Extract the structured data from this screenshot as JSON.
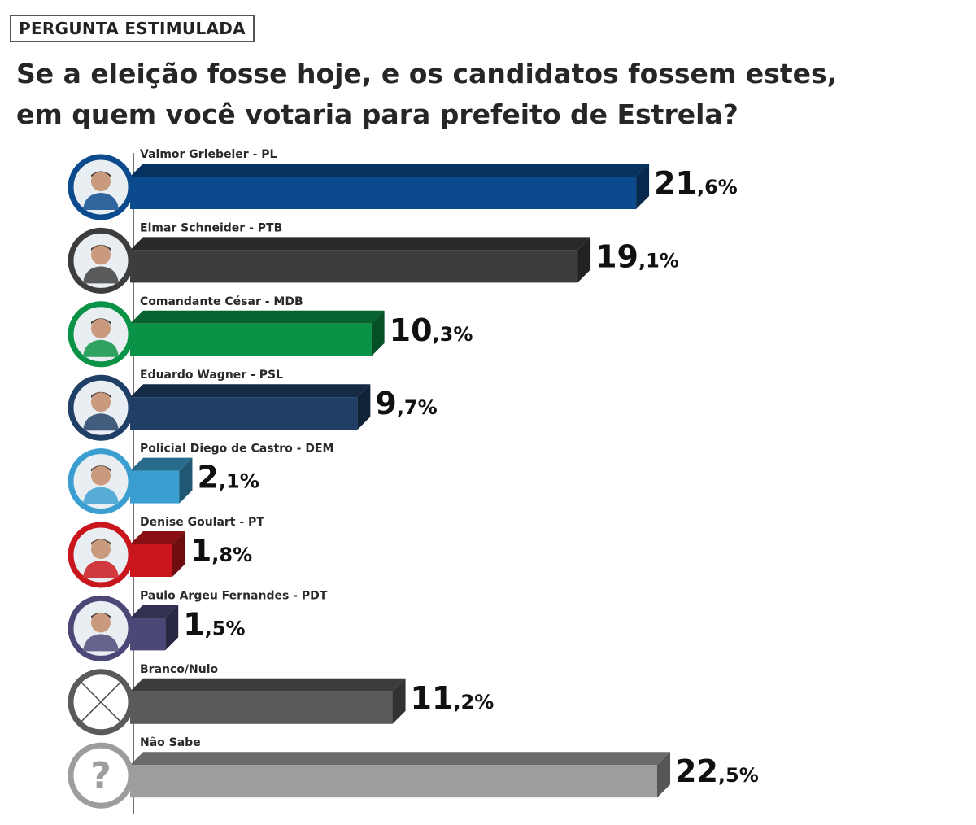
{
  "header": {
    "tag": "PERGUNTA ESTIMULADA",
    "question_line1": "Se a eleição fosse hoje, e os candidatos fossem estes,",
    "question_line2": "em quem você votaria para prefeito de Estrela?"
  },
  "chart_data": {
    "type": "bar",
    "orientation": "horizontal",
    "title": "Se a eleição fosse hoje, e os candidatos fossem estes, em quem você votaria para prefeito de Estrela?",
    "unit": "%",
    "decimal_separator": ",",
    "categories": [
      "Valmor Griebeler - PL",
      "Elmar Schneider - PTB",
      "Comandante César - MDB",
      "Eduardo Wagner - PSL",
      "Policial Diego de Castro - DEM",
      "Denise Goulart - PT",
      "Paulo Argeu Fernandes - PDT",
      "Branco/Nulo",
      "Não Sabe"
    ],
    "values": [
      21.6,
      19.1,
      10.3,
      9.7,
      2.1,
      1.8,
      1.5,
      11.2,
      22.5
    ],
    "value_labels": [
      {
        "int": "21",
        "dec": ",6%"
      },
      {
        "int": "19",
        "dec": ",1%"
      },
      {
        "int": "10",
        "dec": ",3%"
      },
      {
        "int": "9",
        "dec": ",7%"
      },
      {
        "int": "2",
        "dec": ",1%"
      },
      {
        "int": "1",
        "dec": ",8%"
      },
      {
        "int": "1",
        "dec": ",5%"
      },
      {
        "int": "11",
        "dec": ",2%"
      },
      {
        "int": "22",
        "dec": ",5%"
      }
    ],
    "colors": [
      "#0b4a8c",
      "#3d3d3d",
      "#0a9246",
      "#1f3f66",
      "#3a9fd0",
      "#c8161c",
      "#4b4878",
      "#5a5a5a",
      "#9d9d9d"
    ],
    "avatars": [
      "photo",
      "photo",
      "photo",
      "photo",
      "photo",
      "photo",
      "photo",
      "x-mark-icon",
      "question-mark-icon"
    ],
    "avatar_question_glyph": "?",
    "grid": false,
    "legend": "none"
  }
}
